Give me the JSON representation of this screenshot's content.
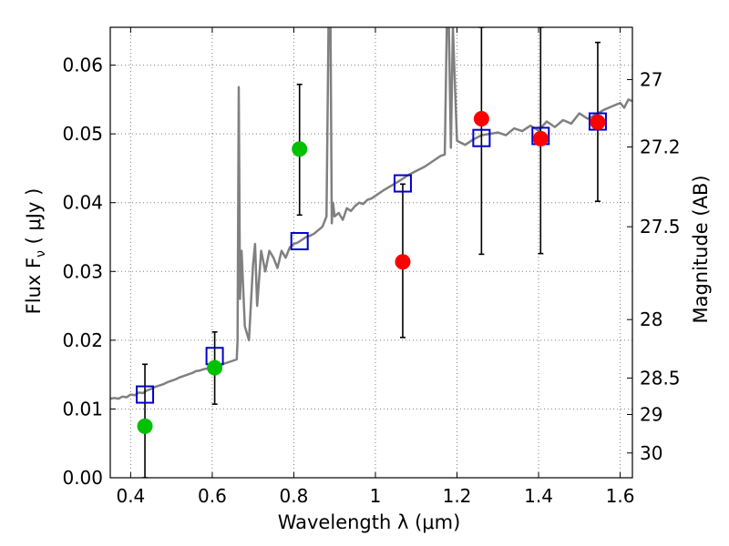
{
  "chart_data": {
    "type": "scatter",
    "xlabel": "Wavelength  λ (μm)",
    "ylabel": "Flux  F",
    "ylabel_sub": "ν",
    "ylabel_unit": " ( μJy )",
    "y2label": "Magnitude (AB)",
    "xlim": [
      0.35,
      1.63
    ],
    "ylim": [
      0.0,
      0.0655
    ],
    "grid": true,
    "x_ticks": [
      0.4,
      0.6,
      0.8,
      1.0,
      1.2,
      1.4,
      1.6
    ],
    "x_tick_labels": [
      "0.4",
      "0.6",
      "0.8",
      "1",
      "1.2",
      "1.4",
      "1.6"
    ],
    "y_ticks": [
      0.0,
      0.01,
      0.02,
      0.03,
      0.04,
      0.05,
      0.06
    ],
    "y_tick_labels": [
      "0.00",
      "0.01",
      "0.02",
      "0.03",
      "0.04",
      "0.05",
      "0.06"
    ],
    "y2_ticks": [
      {
        "label": "27",
        "flux": 0.0579
      },
      {
        "label": "27.2",
        "flux": 0.0481
      },
      {
        "label": "27.5",
        "flux": 0.0365
      },
      {
        "label": "28",
        "flux": 0.023
      },
      {
        "label": "28.5",
        "flux": 0.0145
      },
      {
        "label": "29",
        "flux": 0.0092
      },
      {
        "label": "30",
        "flux": 0.0036
      }
    ],
    "colors": {
      "template": "#808080",
      "green": "#00c000",
      "red": "#ff0000",
      "model_box": "#0000cc",
      "errorbar": "#000000",
      "grid": "#808080"
    },
    "series": [
      {
        "marker": "line",
        "color": "#808080",
        "x": [
          0.35,
          0.36,
          0.37,
          0.38,
          0.39,
          0.4,
          0.41,
          0.42,
          0.43,
          0.44,
          0.45,
          0.46,
          0.47,
          0.48,
          0.49,
          0.5,
          0.51,
          0.52,
          0.53,
          0.54,
          0.55,
          0.56,
          0.57,
          0.58,
          0.59,
          0.6,
          0.61,
          0.62,
          0.63,
          0.64,
          0.65,
          0.66,
          0.662,
          0.665,
          0.668,
          0.672,
          0.68,
          0.69,
          0.7,
          0.705,
          0.71,
          0.72,
          0.73,
          0.74,
          0.75,
          0.76,
          0.77,
          0.78,
          0.79,
          0.8,
          0.81,
          0.82,
          0.83,
          0.84,
          0.85,
          0.86,
          0.87,
          0.88,
          0.885,
          0.89,
          0.893,
          0.896,
          0.9,
          0.91,
          0.92,
          0.93,
          0.94,
          0.95,
          0.96,
          0.97,
          0.98,
          0.99,
          1.0,
          1.02,
          1.04,
          1.06,
          1.08,
          1.1,
          1.12,
          1.14,
          1.16,
          1.17,
          1.175,
          1.18,
          1.185,
          1.19,
          1.2,
          1.22,
          1.24,
          1.26,
          1.28,
          1.3,
          1.32,
          1.34,
          1.36,
          1.38,
          1.4,
          1.42,
          1.44,
          1.46,
          1.48,
          1.5,
          1.52,
          1.54,
          1.56,
          1.58,
          1.6,
          1.61,
          1.62,
          1.63
        ],
        "y": [
          0.0115,
          0.0116,
          0.0115,
          0.0118,
          0.0117,
          0.0121,
          0.012,
          0.0124,
          0.0123,
          0.0127,
          0.0129,
          0.0132,
          0.0134,
          0.0136,
          0.0139,
          0.0141,
          0.0143,
          0.0146,
          0.0148,
          0.015,
          0.0152,
          0.0155,
          0.0156,
          0.0158,
          0.0159,
          0.0161,
          0.0163,
          0.0164,
          0.0166,
          0.0168,
          0.017,
          0.0172,
          0.02,
          0.0568,
          0.026,
          0.033,
          0.022,
          0.02,
          0.031,
          0.034,
          0.025,
          0.033,
          0.03,
          0.033,
          0.032,
          0.0305,
          0.033,
          0.032,
          0.0335,
          0.034,
          0.0342,
          0.0346,
          0.035,
          0.0352,
          0.0355,
          0.036,
          0.0365,
          0.038,
          0.0655,
          0.0655,
          0.037,
          0.04,
          0.038,
          0.0385,
          0.0375,
          0.0392,
          0.0388,
          0.0395,
          0.04,
          0.0398,
          0.0404,
          0.0406,
          0.041,
          0.0418,
          0.0425,
          0.0432,
          0.044,
          0.0446,
          0.0452,
          0.046,
          0.0468,
          0.047,
          0.0655,
          0.0655,
          0.048,
          0.0655,
          0.049,
          0.0484,
          0.0492,
          0.0498,
          0.05,
          0.0502,
          0.0498,
          0.0508,
          0.0504,
          0.0512,
          0.0505,
          0.0518,
          0.051,
          0.052,
          0.0515,
          0.053,
          0.0522,
          0.0528,
          0.0535,
          0.054,
          0.0545,
          0.0538,
          0.055,
          0.0548
        ]
      },
      {
        "name": "",
        "marker": "circle",
        "color": "#00c000",
        "points": [
          {
            "x": 0.435,
            "y": 0.0075,
            "yerr_low": 0.0,
            "yerr_high": 0.0165
          },
          {
            "x": 0.606,
            "y": 0.016,
            "yerr_low": 0.0107,
            "yerr_high": 0.0212
          },
          {
            "x": 0.814,
            "y": 0.0478,
            "yerr_low": 0.0382,
            "yerr_high": 0.0572
          }
        ]
      },
      {
        "name": "",
        "marker": "circle",
        "color": "#ff0000",
        "points": [
          {
            "x": 1.067,
            "y": 0.0314,
            "yerr_low": 0.0204,
            "yerr_high": 0.0427
          },
          {
            "x": 1.26,
            "y": 0.0522,
            "yerr_low": 0.0325,
            "yerr_high": 0.0655
          },
          {
            "x": 1.405,
            "y": 0.0493,
            "yerr_low": 0.0326,
            "yerr_high": 0.0655
          },
          {
            "x": 1.545,
            "y": 0.0517,
            "yerr_low": 0.0402,
            "yerr_high": 0.0633
          }
        ]
      },
      {
        "name": "",
        "marker": "square",
        "color": "#0000cc",
        "points": [
          {
            "x": 0.435,
            "y": 0.0121
          },
          {
            "x": 0.606,
            "y": 0.0177
          },
          {
            "x": 0.814,
            "y": 0.0344
          },
          {
            "x": 1.067,
            "y": 0.0428
          },
          {
            "x": 1.26,
            "y": 0.0494
          },
          {
            "x": 1.405,
            "y": 0.0497
          },
          {
            "x": 1.545,
            "y": 0.0518
          }
        ]
      }
    ]
  }
}
